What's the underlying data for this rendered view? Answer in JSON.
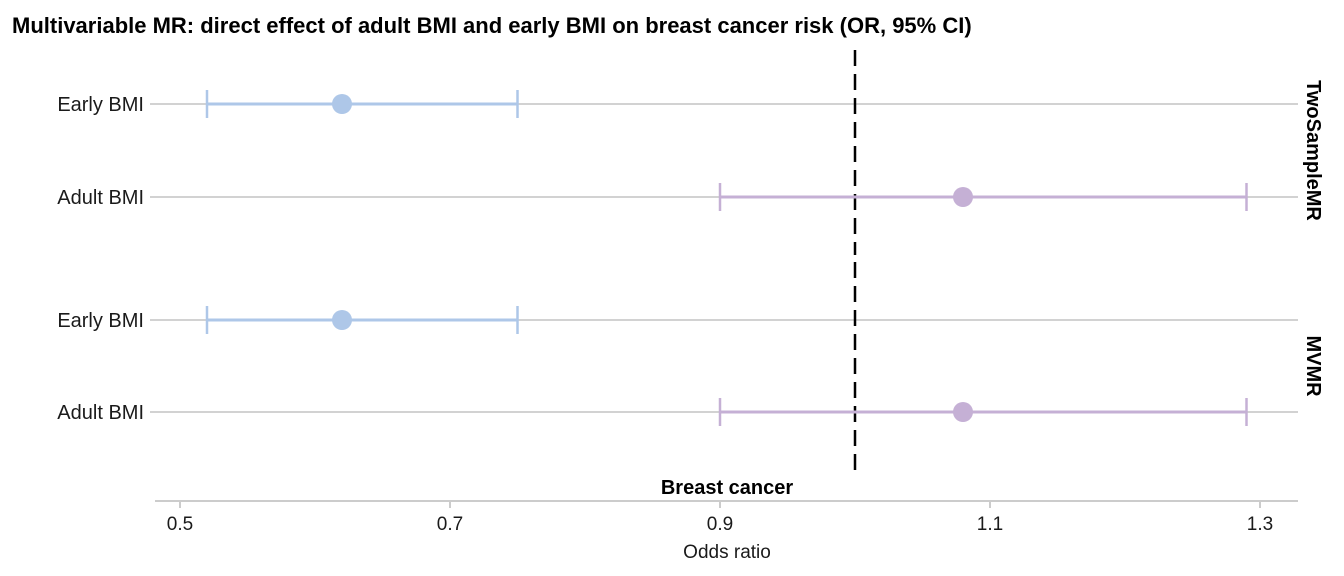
{
  "chart_data": {
    "type": "forest",
    "title": "Multivariable MR: direct effect of adult BMI and early BMI on breast cancer risk (OR, 95% CI)",
    "xlabel": "Odds ratio",
    "strip_label": "Breast cancer",
    "x_ticks": [
      "0.5",
      "0.7",
      "0.9",
      "1.1",
      "1.3"
    ],
    "xlim": [
      0.48,
      1.33
    ],
    "reference_line": 1.0,
    "colors": {
      "Early BMI": "#aec7e8",
      "Adult BMI": "#c5b0d5"
    },
    "facets": [
      {
        "label": "TwoSampleMR",
        "rows": [
          {
            "exposure": "Early BMI",
            "or": 0.62,
            "lo": 0.52,
            "hi": 0.75
          },
          {
            "exposure": "Adult BMI",
            "or": 1.08,
            "lo": 0.9,
            "hi": 1.29
          }
        ]
      },
      {
        "label": "MVMR",
        "rows": [
          {
            "exposure": "Early BMI",
            "or": 0.62,
            "lo": 0.52,
            "hi": 0.75
          },
          {
            "exposure": "Adult BMI",
            "or": 1.08,
            "lo": 0.9,
            "hi": 1.29
          }
        ]
      }
    ]
  }
}
